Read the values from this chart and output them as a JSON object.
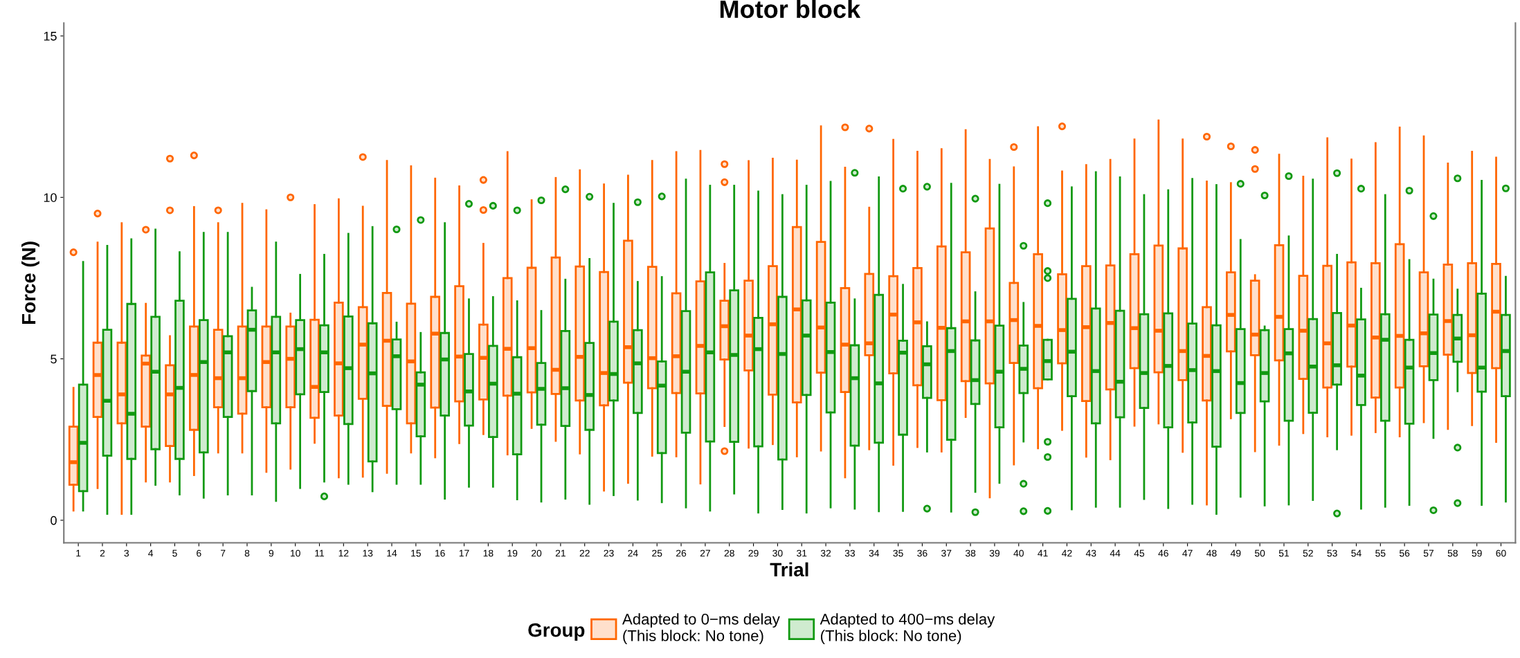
{
  "chart_data": {
    "type": "box",
    "title": "Motor block",
    "xlabel": "Trial",
    "ylabel": "Force (N)",
    "legend_title": "Group",
    "legend": "bottom",
    "grid": false,
    "marker": "circle",
    "categories": [
      "1",
      "2",
      "3",
      "4",
      "5",
      "6",
      "7",
      "8",
      "9",
      "10",
      "11",
      "12",
      "13",
      "14",
      "15",
      "16",
      "17",
      "18",
      "19",
      "20",
      "21",
      "22",
      "23",
      "24",
      "25",
      "26",
      "27",
      "28",
      "29",
      "30",
      "31",
      "32",
      "33",
      "34",
      "35",
      "36",
      "37",
      "38",
      "39",
      "40",
      "41",
      "42",
      "43",
      "44",
      "45",
      "46",
      "47",
      "48",
      "49",
      "50",
      "51",
      "52",
      "53",
      "54",
      "55",
      "56",
      "57",
      "58",
      "59",
      "60"
    ],
    "ylim": [
      -0.7,
      15.4
    ],
    "yticks": [
      0,
      5,
      10,
      15
    ],
    "series": [
      {
        "name": "Adapted to 0−ms delay\n(This block: No tone)",
        "color": "#ff6600",
        "boxes": [
          {
            "low": 0.3,
            "q1": 1.1,
            "median": 1.8,
            "q3": 2.9,
            "high": 4.1,
            "outliers": [
              8.3
            ]
          },
          {
            "low": 1.0,
            "q1": 3.2,
            "median": 4.5,
            "q3": 5.5,
            "high": 8.6,
            "outliers": [
              9.5
            ]
          },
          {
            "low": 0.2,
            "q1": 3.0,
            "median": 3.9,
            "q3": 5.5,
            "high": 9.2
          },
          {
            "low": 1.2,
            "q1": 2.9,
            "median": 4.85,
            "q3": 5.1,
            "high": 6.7,
            "outliers": [
              9.0
            ]
          },
          {
            "low": 1.2,
            "q1": 2.3,
            "median": 3.9,
            "q3": 4.8,
            "high": 5.7,
            "outliers": [
              9.6,
              11.2
            ]
          },
          {
            "low": 1.4,
            "q1": 2.8,
            "median": 4.5,
            "q3": 6.0,
            "high": 9.7,
            "outliers": [
              11.3
            ]
          },
          {
            "low": 2.1,
            "q1": 3.5,
            "median": 4.4,
            "q3": 5.9,
            "high": 9.2,
            "outliers": [
              9.6
            ]
          },
          {
            "low": 2.1,
            "q1": 3.3,
            "median": 4.4,
            "q3": 6.0,
            "high": 9.8
          },
          {
            "low": 1.5,
            "q1": 3.5,
            "median": 4.9,
            "q3": 6.0,
            "high": 9.6
          },
          {
            "low": 1.6,
            "q1": 3.5,
            "median": 5.0,
            "q3": 6.0,
            "high": 6.4,
            "outliers": [
              10.0
            ]
          },
          {
            "low": 2.4,
            "q1": 3.17,
            "median": 4.13,
            "q3": 6.21,
            "high": 9.76
          },
          {
            "low": 1.33,
            "q1": 3.24,
            "median": 4.86,
            "q3": 6.74,
            "high": 9.94
          },
          {
            "low": 1.35,
            "q1": 3.76,
            "median": 5.44,
            "q3": 6.6,
            "high": 9.71,
            "outliers": [
              11.25
            ]
          },
          {
            "low": 1.47,
            "q1": 3.54,
            "median": 5.56,
            "q3": 7.04,
            "high": 11.13
          },
          {
            "low": 2.1,
            "q1": 3.0,
            "median": 4.92,
            "q3": 6.71,
            "high": 10.96
          },
          {
            "low": 1.95,
            "q1": 3.49,
            "median": 5.78,
            "q3": 6.92,
            "high": 10.58
          },
          {
            "low": 2.39,
            "q1": 3.68,
            "median": 5.07,
            "q3": 7.25,
            "high": 10.34
          },
          {
            "low": 2.67,
            "q1": 3.74,
            "median": 5.03,
            "q3": 6.06,
            "high": 8.56,
            "outliers": [
              9.61,
              10.54
            ]
          },
          {
            "low": 2.04,
            "q1": 3.86,
            "median": 5.31,
            "q3": 7.5,
            "high": 11.4
          },
          {
            "low": 2.86,
            "q1": 3.96,
            "median": 5.33,
            "q3": 7.82,
            "high": 9.91
          },
          {
            "low": 2.46,
            "q1": 3.91,
            "median": 4.66,
            "q3": 8.14,
            "high": 10.6
          },
          {
            "low": 2.07,
            "q1": 3.71,
            "median": 5.06,
            "q3": 7.86,
            "high": 10.84
          },
          {
            "low": 0.92,
            "q1": 3.56,
            "median": 4.56,
            "q3": 7.69,
            "high": 10.4
          },
          {
            "low": 1.16,
            "q1": 4.26,
            "median": 5.36,
            "q3": 8.66,
            "high": 10.67
          },
          {
            "low": 2.0,
            "q1": 4.09,
            "median": 5.02,
            "q3": 7.85,
            "high": 11.13
          },
          {
            "low": 1.98,
            "q1": 3.94,
            "median": 5.08,
            "q3": 7.03,
            "high": 11.4
          },
          {
            "low": 1.14,
            "q1": 3.93,
            "median": 5.4,
            "q3": 7.4,
            "high": 11.44
          },
          {
            "low": 2.92,
            "q1": 4.98,
            "median": 6.01,
            "q3": 6.8,
            "high": 7.94,
            "outliers": [
              2.14,
              10.47,
              11.03
            ]
          },
          {
            "low": 2.25,
            "q1": 4.64,
            "median": 5.72,
            "q3": 7.42,
            "high": 11.12
          },
          {
            "low": 2.36,
            "q1": 3.89,
            "median": 6.07,
            "q3": 7.87,
            "high": 11.2
          },
          {
            "low": 1.98,
            "q1": 3.65,
            "median": 6.53,
            "q3": 9.08,
            "high": 11.14
          },
          {
            "low": 2.16,
            "q1": 4.57,
            "median": 5.97,
            "q3": 8.62,
            "high": 12.2
          },
          {
            "low": 1.33,
            "q1": 3.97,
            "median": 5.44,
            "q3": 7.19,
            "high": 10.92,
            "outliers": [
              12.17
            ]
          },
          {
            "low": 2.2,
            "q1": 5.11,
            "median": 5.48,
            "q3": 7.63,
            "high": 9.68,
            "outliers": [
              12.13
            ]
          },
          {
            "low": 1.72,
            "q1": 4.55,
            "median": 6.37,
            "q3": 7.56,
            "high": 11.78
          },
          {
            "low": 2.27,
            "q1": 4.18,
            "median": 6.13,
            "q3": 7.81,
            "high": 11.41
          },
          {
            "low": 2.13,
            "q1": 3.72,
            "median": 5.96,
            "q3": 8.48,
            "high": 11.49
          },
          {
            "low": 3.2,
            "q1": 4.31,
            "median": 6.16,
            "q3": 8.3,
            "high": 12.08
          },
          {
            "low": 0.71,
            "q1": 4.24,
            "median": 6.16,
            "q3": 9.04,
            "high": 11.16
          },
          {
            "low": 1.73,
            "q1": 4.87,
            "median": 6.2,
            "q3": 7.35,
            "high": 10.93,
            "outliers": [
              11.56
            ]
          },
          {
            "low": 2.23,
            "q1": 4.09,
            "median": 6.02,
            "q3": 8.24,
            "high": 12.17
          },
          {
            "low": 2.8,
            "q1": 4.86,
            "median": 5.89,
            "q3": 7.62,
            "high": 10.8,
            "outliers": [
              12.2
            ]
          },
          {
            "low": 1.97,
            "q1": 3.69,
            "median": 5.98,
            "q3": 7.87,
            "high": 11.0
          },
          {
            "low": 1.89,
            "q1": 4.05,
            "median": 6.11,
            "q3": 7.89,
            "high": 11.16
          },
          {
            "low": 2.93,
            "q1": 4.71,
            "median": 5.95,
            "q3": 8.24,
            "high": 11.79
          },
          {
            "low": 3.0,
            "q1": 4.58,
            "median": 5.87,
            "q3": 8.51,
            "high": 12.38
          },
          {
            "low": 2.12,
            "q1": 4.34,
            "median": 5.24,
            "q3": 8.42,
            "high": 11.79
          },
          {
            "low": 0.49,
            "q1": 3.71,
            "median": 5.09,
            "q3": 6.6,
            "high": 10.49,
            "outliers": [
              11.88
            ]
          },
          {
            "low": 3.16,
            "q1": 5.23,
            "median": 6.36,
            "q3": 7.68,
            "high": 10.44,
            "outliers": [
              11.58
            ]
          },
          {
            "low": 2.14,
            "q1": 5.11,
            "median": 5.75,
            "q3": 7.42,
            "high": 7.59,
            "outliers": [
              10.88,
              11.47
            ]
          },
          {
            "low": 2.34,
            "q1": 4.95,
            "median": 6.3,
            "q3": 8.52,
            "high": 11.32
          },
          {
            "low": 2.7,
            "q1": 4.38,
            "median": 5.87,
            "q3": 7.57,
            "high": 10.64
          },
          {
            "low": 2.6,
            "q1": 4.11,
            "median": 5.48,
            "q3": 7.88,
            "high": 11.83
          },
          {
            "low": 2.65,
            "q1": 4.76,
            "median": 6.03,
            "q3": 7.99,
            "high": 11.17
          },
          {
            "low": 2.73,
            "q1": 3.8,
            "median": 5.66,
            "q3": 7.96,
            "high": 11.68
          },
          {
            "low": 2.6,
            "q1": 4.11,
            "median": 5.71,
            "q3": 8.55,
            "high": 12.16
          },
          {
            "low": 3.04,
            "q1": 4.77,
            "median": 5.79,
            "q3": 7.68,
            "high": 11.89
          },
          {
            "low": 2.83,
            "q1": 5.13,
            "median": 6.17,
            "q3": 7.92,
            "high": 11.05
          },
          {
            "low": 2.95,
            "q1": 4.56,
            "median": 5.73,
            "q3": 7.96,
            "high": 11.41
          },
          {
            "low": 2.43,
            "q1": 4.71,
            "median": 6.46,
            "q3": 7.94,
            "high": 11.23
          }
        ]
      },
      {
        "name": "Adapted to 400−ms delay\n(This block: No tone)",
        "color": "#119911",
        "boxes": [
          {
            "low": 0.3,
            "q1": 0.9,
            "median": 2.4,
            "q3": 4.2,
            "high": 8.0
          },
          {
            "low": 0.2,
            "q1": 2.0,
            "median": 3.7,
            "q3": 5.9,
            "high": 8.5
          },
          {
            "low": 0.2,
            "q1": 1.9,
            "median": 3.3,
            "q3": 6.7,
            "high": 8.7
          },
          {
            "low": 1.1,
            "q1": 2.2,
            "median": 4.6,
            "q3": 6.3,
            "high": 9.0
          },
          {
            "low": 0.8,
            "q1": 1.9,
            "median": 4.1,
            "q3": 6.8,
            "high": 8.3
          },
          {
            "low": 0.7,
            "q1": 2.1,
            "median": 4.9,
            "q3": 6.2,
            "high": 8.9
          },
          {
            "low": 0.8,
            "q1": 3.2,
            "median": 5.2,
            "q3": 5.7,
            "high": 8.9
          },
          {
            "low": 0.8,
            "q1": 4.0,
            "median": 5.9,
            "q3": 6.5,
            "high": 7.2
          },
          {
            "low": 0.6,
            "q1": 3.0,
            "median": 5.2,
            "q3": 6.3,
            "high": 8.6
          },
          {
            "low": 1.0,
            "q1": 3.9,
            "median": 5.3,
            "q3": 6.2,
            "high": 7.6
          },
          {
            "low": 1.2,
            "q1": 3.97,
            "median": 5.2,
            "q3": 6.04,
            "high": 8.22,
            "outliers": [
              0.74
            ]
          },
          {
            "low": 1.13,
            "q1": 2.98,
            "median": 4.71,
            "q3": 6.31,
            "high": 8.87
          },
          {
            "low": 0.9,
            "q1": 1.82,
            "median": 4.55,
            "q3": 6.1,
            "high": 9.08
          },
          {
            "low": 1.13,
            "q1": 3.44,
            "median": 5.08,
            "q3": 5.6,
            "high": 6.12,
            "outliers": [
              9.01
            ]
          },
          {
            "low": 1.13,
            "q1": 2.6,
            "median": 4.2,
            "q3": 4.58,
            "high": 5.8,
            "outliers": [
              9.3
            ]
          },
          {
            "low": 0.67,
            "q1": 3.24,
            "median": 4.98,
            "q3": 5.8,
            "high": 9.2
          },
          {
            "low": 1.04,
            "q1": 2.93,
            "median": 3.99,
            "q3": 5.15,
            "high": 6.84,
            "outliers": [
              9.8
            ]
          },
          {
            "low": 1.04,
            "q1": 2.58,
            "median": 4.23,
            "q3": 5.4,
            "high": 6.91,
            "outliers": [
              9.74
            ]
          },
          {
            "low": 0.65,
            "q1": 2.04,
            "median": 3.92,
            "q3": 5.05,
            "high": 6.78,
            "outliers": [
              9.6
            ]
          },
          {
            "low": 0.58,
            "q1": 2.96,
            "median": 4.07,
            "q3": 4.87,
            "high": 6.48,
            "outliers": [
              9.91
            ]
          },
          {
            "low": 0.67,
            "q1": 2.92,
            "median": 4.09,
            "q3": 5.86,
            "high": 7.45,
            "outliers": [
              10.25
            ]
          },
          {
            "low": 0.51,
            "q1": 2.8,
            "median": 3.88,
            "q3": 5.49,
            "high": 8.09,
            "outliers": [
              10.02
            ]
          },
          {
            "low": 0.78,
            "q1": 3.71,
            "median": 4.53,
            "q3": 6.15,
            "high": 9.8
          },
          {
            "low": 0.64,
            "q1": 3.32,
            "median": 4.86,
            "q3": 5.89,
            "high": 7.38,
            "outliers": [
              9.85
            ]
          },
          {
            "low": 0.56,
            "q1": 2.08,
            "median": 4.17,
            "q3": 4.92,
            "high": 7.53,
            "outliers": [
              10.03
            ]
          },
          {
            "low": 0.4,
            "q1": 2.71,
            "median": 4.6,
            "q3": 6.48,
            "high": 10.55
          },
          {
            "low": 0.3,
            "q1": 2.44,
            "median": 5.2,
            "q3": 7.68,
            "high": 10.36
          },
          {
            "low": 0.83,
            "q1": 2.43,
            "median": 5.12,
            "q3": 7.12,
            "high": 10.36
          },
          {
            "low": 0.24,
            "q1": 2.29,
            "median": 5.3,
            "q3": 6.27,
            "high": 10.18
          },
          {
            "low": 0.35,
            "q1": 1.88,
            "median": 5.15,
            "q3": 6.92,
            "high": 10.07
          },
          {
            "low": 0.24,
            "q1": 3.88,
            "median": 5.72,
            "q3": 6.81,
            "high": 10.36
          },
          {
            "low": 0.4,
            "q1": 3.34,
            "median": 5.21,
            "q3": 6.74,
            "high": 10.48
          },
          {
            "low": 0.36,
            "q1": 2.31,
            "median": 4.4,
            "q3": 5.42,
            "high": 6.84,
            "outliers": [
              10.76
            ]
          },
          {
            "low": 0.28,
            "q1": 2.4,
            "median": 4.24,
            "q3": 6.98,
            "high": 10.62
          },
          {
            "low": 0.29,
            "q1": 2.65,
            "median": 5.19,
            "q3": 5.56,
            "high": 7.29,
            "outliers": [
              10.27
            ]
          },
          {
            "low": 2.13,
            "q1": 3.79,
            "median": 4.83,
            "q3": 5.39,
            "high": 6.13,
            "outliers": [
              0.36,
              10.33
            ]
          },
          {
            "low": 0.27,
            "q1": 2.49,
            "median": 5.24,
            "q3": 5.95,
            "high": 10.42
          },
          {
            "low": 0.88,
            "q1": 3.6,
            "median": 4.34,
            "q3": 5.57,
            "high": 7.06,
            "outliers": [
              0.25,
              9.96
            ]
          },
          {
            "low": 1.16,
            "q1": 2.88,
            "median": 4.6,
            "q3": 6.03,
            "high": 10.39
          },
          {
            "low": 2.44,
            "q1": 3.94,
            "median": 4.69,
            "q3": 5.41,
            "high": 6.73,
            "outliers": [
              0.28,
              1.13,
              8.5
            ]
          },
          {
            "low": 4.36,
            "q1": 4.36,
            "median": 4.93,
            "q3": 5.59,
            "high": 5.59,
            "outliers": [
              0.29,
              1.96,
              2.43,
              7.5,
              7.72,
              9.82
            ]
          },
          {
            "low": 0.34,
            "q1": 3.84,
            "median": 5.22,
            "q3": 6.86,
            "high": 10.31
          },
          {
            "low": 0.42,
            "q1": 3.0,
            "median": 4.62,
            "q3": 6.56,
            "high": 10.78
          },
          {
            "low": 0.42,
            "q1": 3.19,
            "median": 4.29,
            "q3": 6.49,
            "high": 10.62
          },
          {
            "low": 0.66,
            "q1": 3.48,
            "median": 4.56,
            "q3": 6.38,
            "high": 10.07
          },
          {
            "low": 0.38,
            "q1": 2.88,
            "median": 4.78,
            "q3": 6.41,
            "high": 10.22
          },
          {
            "low": 0.51,
            "q1": 3.03,
            "median": 4.65,
            "q3": 6.09,
            "high": 10.57
          },
          {
            "low": 0.2,
            "q1": 2.28,
            "median": 4.62,
            "q3": 6.04,
            "high": 10.38
          },
          {
            "low": 0.73,
            "q1": 3.32,
            "median": 4.25,
            "q3": 5.92,
            "high": 8.68,
            "outliers": [
              10.42
            ]
          },
          {
            "low": 0.46,
            "q1": 3.68,
            "median": 4.56,
            "q3": 5.89,
            "high": 6.0,
            "outliers": [
              10.06
            ]
          },
          {
            "low": 0.49,
            "q1": 3.08,
            "median": 5.17,
            "q3": 5.92,
            "high": 8.79,
            "outliers": [
              10.66
            ]
          },
          {
            "low": 0.63,
            "q1": 3.33,
            "median": 4.76,
            "q3": 6.23,
            "high": 10.55
          },
          {
            "low": 2.2,
            "q1": 4.2,
            "median": 4.8,
            "q3": 6.42,
            "high": 8.22,
            "outliers": [
              0.21,
              10.75
            ]
          },
          {
            "low": 0.36,
            "q1": 3.57,
            "median": 4.48,
            "q3": 6.22,
            "high": 7.17,
            "outliers": [
              10.27
            ]
          },
          {
            "low": 0.42,
            "q1": 3.08,
            "median": 5.59,
            "q3": 6.38,
            "high": 10.07
          },
          {
            "low": 0.48,
            "q1": 2.99,
            "median": 4.73,
            "q3": 5.59,
            "high": 8.06,
            "outliers": [
              10.21
            ]
          },
          {
            "low": 2.55,
            "q1": 4.34,
            "median": 5.18,
            "q3": 6.37,
            "high": 7.45,
            "outliers": [
              0.31,
              9.42
            ]
          },
          {
            "low": 4.0,
            "q1": 4.91,
            "median": 5.63,
            "q3": 6.36,
            "high": 7.14,
            "outliers": [
              0.53,
              2.25,
              10.59
            ]
          },
          {
            "low": 0.48,
            "q1": 3.98,
            "median": 4.73,
            "q3": 7.02,
            "high": 10.51
          },
          {
            "low": 0.58,
            "q1": 3.84,
            "median": 5.24,
            "q3": 6.36,
            "high": 7.54,
            "outliers": [
              10.28
            ]
          }
        ]
      }
    ]
  }
}
